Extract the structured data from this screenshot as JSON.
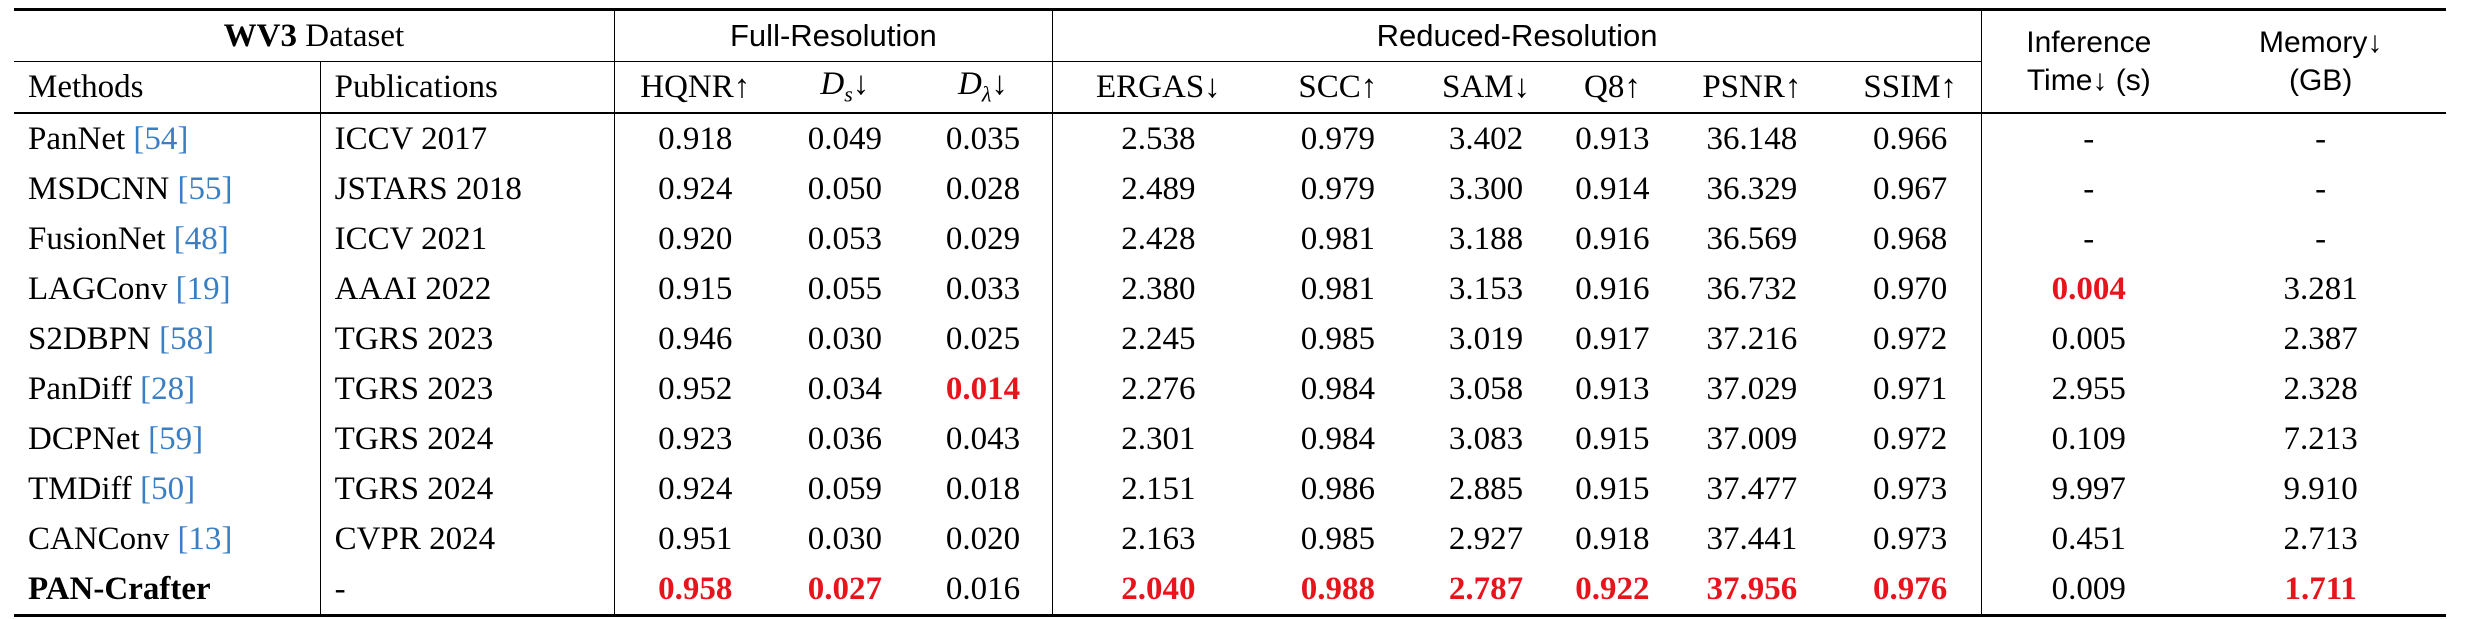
{
  "header": {
    "dataset_bold": "WV3",
    "dataset_rest": " Dataset",
    "full_resolution": "Full-Resolution",
    "reduced_resolution": "Reduced-Resolution",
    "inference_line1": "Inference",
    "inference_line2": "Time↓ (s)",
    "memory_line1": "Memory↓",
    "memory_line2": "(GB)",
    "methods": "Methods",
    "publications": "Publications",
    "hqnr": "HQNR↑",
    "ds_base": "D",
    "ds_sub": "s",
    "ds_arrow": "↓",
    "dl_base": "D",
    "dl_sub": "λ",
    "dl_arrow": "↓",
    "ergas": "ERGAS↓",
    "scc": "SCC↑",
    "sam": "SAM↓",
    "q8": "Q8↑",
    "psnr": "PSNR↑",
    "ssim": "SSIM↑"
  },
  "rows": [
    {
      "method": "PanNet ",
      "cite": "[54]",
      "pub": "ICCV 2017",
      "hqnr": "0.918",
      "ds": "0.049",
      "dl": "0.035",
      "ergas": "2.538",
      "scc": "0.979",
      "sam": "3.402",
      "q8": "0.913",
      "psnr": "36.148",
      "ssim": "0.966",
      "time": "-",
      "mem": "-"
    },
    {
      "method": "MSDCNN ",
      "cite": "[55]",
      "pub": "JSTARS 2018",
      "hqnr": "0.924",
      "ds": "0.050",
      "dl": "0.028",
      "ergas": "2.489",
      "scc": "0.979",
      "sam": "3.300",
      "q8": "0.914",
      "psnr": "36.329",
      "ssim": "0.967",
      "time": "-",
      "mem": "-"
    },
    {
      "method": "FusionNet ",
      "cite": "[48]",
      "pub": "ICCV 2021",
      "hqnr": "0.920",
      "ds": "0.053",
      "dl": "0.029",
      "ergas": "2.428",
      "scc": "0.981",
      "sam": "3.188",
      "q8": "0.916",
      "psnr": "36.569",
      "ssim": "0.968",
      "time": "-",
      "mem": "-"
    },
    {
      "method": "LAGConv ",
      "cite": "[19]",
      "pub": "AAAI 2022",
      "hqnr": "0.915",
      "ds": "0.055",
      "dl": "0.033",
      "ergas": "2.380",
      "scc": "0.981",
      "sam": "3.153",
      "q8": "0.916",
      "psnr": "36.732",
      "ssim": "0.970",
      "time": "0.004",
      "mem": "3.281"
    },
    {
      "method": "S2DBPN ",
      "cite": "[58]",
      "pub": "TGRS 2023",
      "hqnr": "0.946",
      "ds": "0.030",
      "dl": "0.025",
      "ergas": "2.245",
      "scc": "0.985",
      "sam": "3.019",
      "q8": "0.917",
      "psnr": "37.216",
      "ssim": "0.972",
      "time": "0.005",
      "mem": "2.387"
    },
    {
      "method": "PanDiff ",
      "cite": "[28]",
      "pub": "TGRS 2023",
      "hqnr": "0.952",
      "ds": "0.034",
      "dl": "0.014",
      "ergas": "2.276",
      "scc": "0.984",
      "sam": "3.058",
      "q8": "0.913",
      "psnr": "37.029",
      "ssim": "0.971",
      "time": "2.955",
      "mem": "2.328"
    },
    {
      "method": "DCPNet ",
      "cite": "[59]",
      "pub": "TGRS 2024",
      "hqnr": "0.923",
      "ds": "0.036",
      "dl": "0.043",
      "ergas": "2.301",
      "scc": "0.984",
      "sam": "3.083",
      "q8": "0.915",
      "psnr": "37.009",
      "ssim": "0.972",
      "time": "0.109",
      "mem": "7.213"
    },
    {
      "method": "TMDiff ",
      "cite": "[50]",
      "pub": "TGRS 2024",
      "hqnr": "0.924",
      "ds": "0.059",
      "dl": "0.018",
      "ergas": "2.151",
      "scc": "0.986",
      "sam": "2.885",
      "q8": "0.915",
      "psnr": "37.477",
      "ssim": "0.973",
      "time": "9.997",
      "mem": "9.910"
    },
    {
      "method": "CANConv ",
      "cite": "[13]",
      "pub": "CVPR 2024",
      "hqnr": "0.951",
      "ds": "0.030",
      "dl": "0.020",
      "ergas": "2.163",
      "scc": "0.985",
      "sam": "2.927",
      "q8": "0.918",
      "psnr": "37.441",
      "ssim": "0.973",
      "time": "0.451",
      "mem": "2.713"
    },
    {
      "method": "PAN-Crafter",
      "cite": "",
      "pub": "-",
      "hqnr": "0.958",
      "ds": "0.027",
      "dl": "0.016",
      "ergas": "2.040",
      "scc": "0.988",
      "sam": "2.787",
      "q8": "0.922",
      "psnr": "37.956",
      "ssim": "0.976",
      "time": "0.009",
      "mem": "1.711"
    }
  ],
  "colors": {
    "best": "#e8141b",
    "citation": "#3a7fc4"
  }
}
